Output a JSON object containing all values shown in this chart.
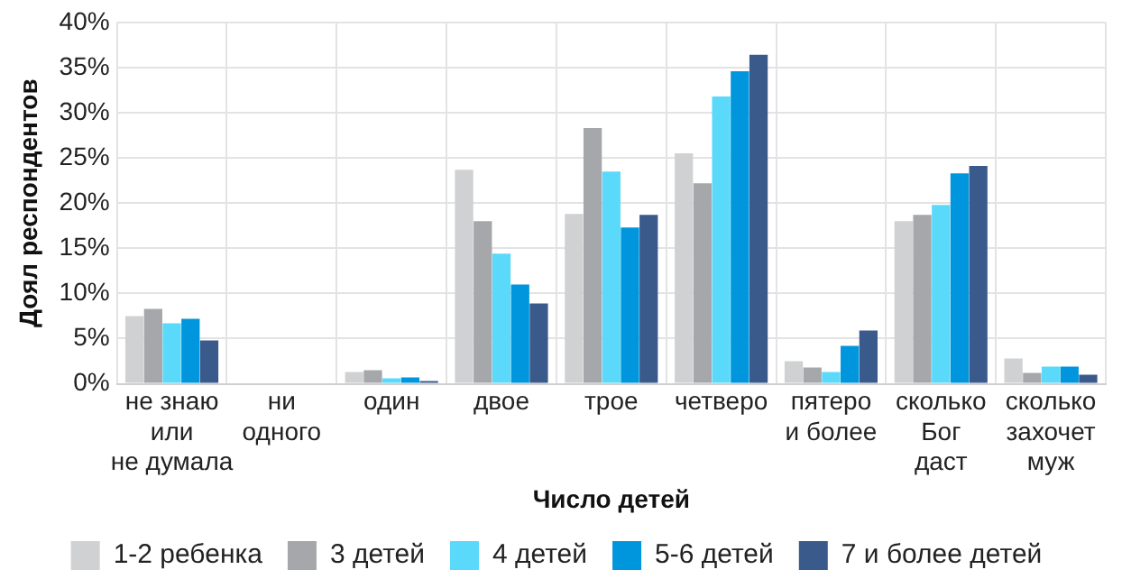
{
  "chart_data": {
    "type": "bar",
    "xlabel": "Число детей",
    "ylabel": "Доял респондентов",
    "categories": [
      "не знаю\nили\nне думала",
      "ни\nодного",
      "один",
      "двое",
      "трое",
      "четверо",
      "пятеро\nи более",
      "сколько\nБог\nдаст",
      "сколько\nзахочет\nмуж"
    ],
    "series": [
      {
        "name": "1-2 ребенка",
        "color": "#d0d1d3",
        "values": [
          7.5,
          0.1,
          1.3,
          23.7,
          18.8,
          25.5,
          2.5,
          18,
          2.8
        ]
      },
      {
        "name": "3 детей",
        "color": "#a6a7ab",
        "values": [
          8.3,
          0,
          1.5,
          18,
          28.3,
          22.2,
          1.8,
          18.7,
          1.2
        ]
      },
      {
        "name": "4 детей",
        "color": "#5bd9fb",
        "values": [
          6.7,
          0,
          0.6,
          14.4,
          23.5,
          31.8,
          1.3,
          19.8,
          1.9
        ]
      },
      {
        "name": "5-6 детей",
        "color": "#0096dd",
        "values": [
          7.2,
          0,
          0.7,
          11,
          17.3,
          34.6,
          4.2,
          23.3,
          1.9
        ]
      },
      {
        "name": "7 и более детей",
        "color": "#3a5a8c",
        "values": [
          4.8,
          0,
          0.3,
          8.9,
          18.7,
          36.4,
          5.9,
          24.1,
          1.0
        ]
      }
    ],
    "ylim": [
      0,
      40
    ],
    "yticks": [
      {
        "value": 0,
        "label": "0%"
      },
      {
        "value": 5,
        "label": "5%"
      },
      {
        "value": 10,
        "label": "10%"
      },
      {
        "value": 15,
        "label": "15%"
      },
      {
        "value": 20,
        "label": "20%"
      },
      {
        "value": 25,
        "label": "25%"
      },
      {
        "value": 30,
        "label": "30%"
      },
      {
        "value": 35,
        "label": "35%"
      },
      {
        "value": 40,
        "label": "40%"
      }
    ],
    "grid": true,
    "legend": "bottom"
  }
}
